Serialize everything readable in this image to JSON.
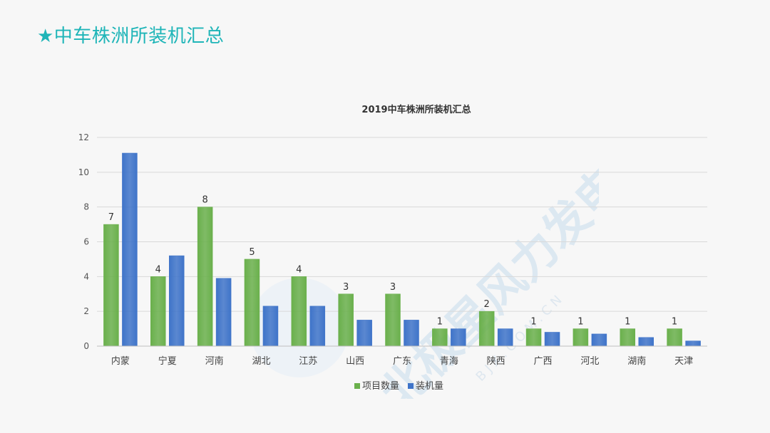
{
  "slide_title": "★中车株洲所装机汇总",
  "watermark": {
    "text": "北极星风力发电网",
    "subtext": "B J X . C O M . C N",
    "color": "#cfe0ee"
  },
  "chart_data": {
    "type": "bar",
    "title": "2019中车株洲所装机汇总",
    "xlabel": "",
    "ylabel": "",
    "ylim": [
      0,
      12
    ],
    "yticks": [
      0,
      2,
      4,
      6,
      8,
      10,
      12
    ],
    "grid": true,
    "legend_position": "bottom",
    "categories": [
      "内蒙",
      "宁夏",
      "河南",
      "湖北",
      "江苏",
      "山西",
      "广东",
      "青海",
      "陕西",
      "广西",
      "河北",
      "湖南",
      "天津"
    ],
    "series": [
      {
        "name": "项目数量",
        "color": "#6ab04c",
        "values": [
          7,
          4,
          8,
          5,
          4,
          3,
          3,
          1,
          2,
          1,
          1,
          1,
          1
        ],
        "data_labels": [
          "7",
          "4",
          "8",
          "5",
          "4",
          "3",
          "3",
          "1",
          "2",
          "1",
          "1",
          "1",
          "1"
        ]
      },
      {
        "name": "装机量",
        "color": "#3f74c9",
        "values": [
          11.1,
          5.2,
          3.9,
          2.3,
          2.3,
          1.5,
          1.5,
          1.0,
          1.0,
          0.8,
          0.7,
          0.5,
          0.3
        ]
      }
    ]
  }
}
